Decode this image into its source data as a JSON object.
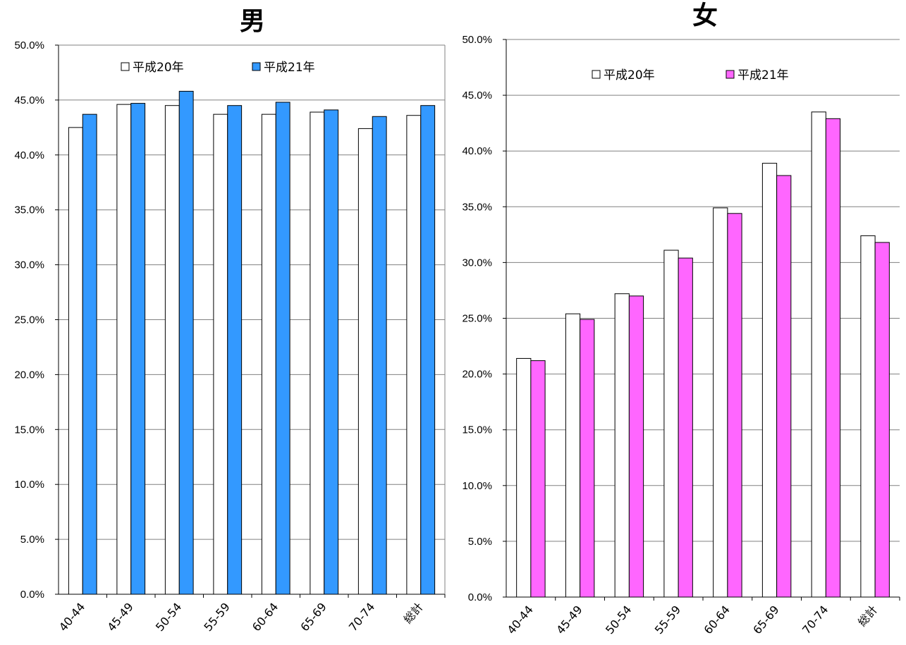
{
  "chart_data": [
    {
      "type": "bar",
      "title": "男",
      "categories": [
        "40-44",
        "45-49",
        "50-54",
        "55-59",
        "60-64",
        "65-69",
        "70-74",
        "総計"
      ],
      "series": [
        {
          "name": "平成20年",
          "values": [
            42.5,
            44.6,
            44.5,
            43.7,
            43.7,
            43.9,
            42.4,
            43.6
          ],
          "color": "#ffffff"
        },
        {
          "name": "平成21年",
          "values": [
            43.7,
            44.7,
            45.8,
            44.5,
            44.8,
            44.1,
            43.5,
            44.5
          ],
          "color": "#3399ff"
        }
      ],
      "ylim": [
        0,
        50
      ],
      "yticks": [
        "0.0%",
        "5.0%",
        "10.0%",
        "15.0%",
        "20.0%",
        "25.0%",
        "30.0%",
        "35.0%",
        "40.0%",
        "45.0%",
        "50.0%"
      ],
      "grid": true,
      "legend": "top-left"
    },
    {
      "type": "bar",
      "title": "女",
      "categories": [
        "40-44",
        "45-49",
        "50-54",
        "55-59",
        "60-64",
        "65-69",
        "70-74",
        "総計"
      ],
      "series": [
        {
          "name": "平成20年",
          "values": [
            21.4,
            25.4,
            27.2,
            31.1,
            34.9,
            38.9,
            43.5,
            32.4
          ],
          "color": "#ffffff"
        },
        {
          "name": "平成21年",
          "values": [
            21.2,
            24.9,
            27.0,
            30.4,
            34.4,
            37.8,
            42.9,
            31.8
          ],
          "color": "#ff66ff"
        }
      ],
      "ylim": [
        0,
        50
      ],
      "yticks": [
        "0.0%",
        "5.0%",
        "10.0%",
        "15.0%",
        "20.0%",
        "25.0%",
        "30.0%",
        "35.0%",
        "40.0%",
        "45.0%",
        "50.0%"
      ],
      "grid": true,
      "legend": "top-left"
    }
  ]
}
